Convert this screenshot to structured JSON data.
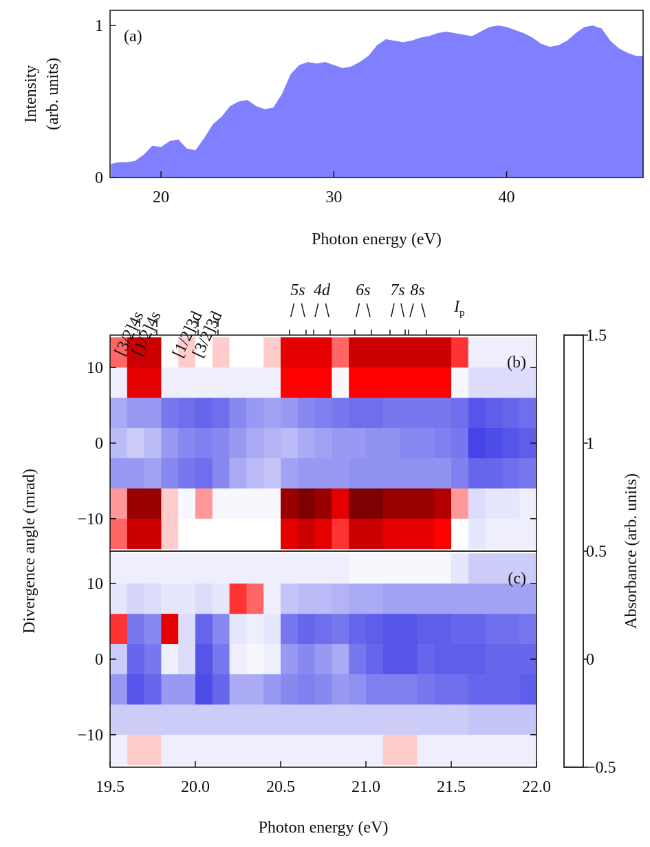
{
  "chart_data": [
    {
      "type": "area",
      "label": "(a)",
      "xlabel": "Photon energy (eV)",
      "ylabel": [
        "Intensity",
        "(arb. units)"
      ],
      "color": "#8080ff",
      "x": [
        17.1,
        17.5,
        18,
        18.5,
        19,
        19.5,
        20,
        20.5,
        21,
        21.5,
        22,
        22.5,
        23,
        23.5,
        24,
        24.5,
        25,
        25.5,
        26,
        26.5,
        27,
        27.5,
        28,
        28.5,
        29,
        29.5,
        30,
        30.5,
        31,
        31.5,
        32,
        32.5,
        33,
        33.5,
        34,
        34.5,
        35,
        35.5,
        36,
        36.5,
        37,
        37.5,
        38,
        38.5,
        39,
        39.5,
        40,
        40.5,
        41,
        41.5,
        42,
        42.5,
        43,
        43.5,
        44,
        44.5,
        45,
        45.5,
        46,
        46.5,
        47,
        47.5,
        47.9
      ],
      "values": [
        0.09,
        0.1,
        0.1,
        0.11,
        0.15,
        0.21,
        0.2,
        0.24,
        0.25,
        0.19,
        0.18,
        0.26,
        0.35,
        0.4,
        0.47,
        0.5,
        0.51,
        0.47,
        0.45,
        0.46,
        0.55,
        0.68,
        0.74,
        0.76,
        0.75,
        0.76,
        0.74,
        0.72,
        0.73,
        0.76,
        0.8,
        0.87,
        0.91,
        0.9,
        0.89,
        0.9,
        0.92,
        0.93,
        0.95,
        0.96,
        0.95,
        0.94,
        0.93,
        0.96,
        0.99,
        1.0,
        0.99,
        0.97,
        0.95,
        0.92,
        0.88,
        0.86,
        0.87,
        0.9,
        0.95,
        0.99,
        1.0,
        0.98,
        0.9,
        0.85,
        0.82,
        0.8,
        0.8
      ],
      "xlim": [
        17.05,
        47.9
      ],
      "ylim": [
        0,
        1.1
      ],
      "xticks": [
        20,
        30,
        40
      ],
      "yticks": [
        0,
        1
      ]
    },
    {
      "type": "heatmap",
      "label": "(b)",
      "ylabel": "Divergence angle (mrad)",
      "x": [
        19.55,
        19.65,
        19.75,
        19.85,
        19.95,
        20.05,
        20.15,
        20.25,
        20.35,
        20.45,
        20.55,
        20.65,
        20.75,
        20.85,
        20.95,
        21.05,
        21.15,
        21.25,
        21.35,
        21.45,
        21.55,
        21.65,
        21.75,
        21.85,
        21.95
      ],
      "y": [
        12,
        8,
        4,
        0,
        -4,
        -8,
        -12
      ],
      "z": [
        [
          -0.15,
          -0.35,
          -0.35,
          0,
          -0.05,
          0,
          -0.05,
          0,
          0,
          -0.05,
          -0.3,
          -0.3,
          -0.3,
          -0.15,
          -0.35,
          -0.35,
          -0.35,
          -0.35,
          -0.35,
          -0.35,
          -0.2,
          0.1,
          0.1,
          0.1,
          0.1
        ],
        [
          0.1,
          -0.3,
          -0.3,
          0.1,
          0.1,
          0.1,
          0.1,
          0.1,
          0.1,
          0.1,
          -0.25,
          -0.25,
          -0.25,
          0.05,
          -0.25,
          -0.25,
          -0.25,
          -0.25,
          -0.25,
          -0.25,
          0.05,
          0.2,
          0.2,
          0.2,
          0.2
        ],
        [
          0.5,
          0.6,
          0.6,
          0.8,
          0.85,
          0.9,
          0.85,
          0.7,
          0.6,
          0.55,
          0.6,
          0.7,
          0.75,
          0.8,
          0.85,
          0.85,
          0.8,
          0.8,
          0.8,
          0.8,
          0.85,
          1.0,
          0.95,
          0.9,
          0.85
        ],
        [
          0.4,
          0.3,
          0.4,
          0.6,
          0.7,
          0.75,
          0.7,
          0.6,
          0.5,
          0.45,
          0.4,
          0.5,
          0.55,
          0.6,
          0.6,
          0.65,
          0.65,
          0.7,
          0.7,
          0.75,
          0.8,
          1.1,
          1.05,
          1.0,
          0.95
        ],
        [
          0.6,
          0.6,
          0.55,
          0.7,
          0.8,
          0.85,
          0.7,
          0.5,
          0.4,
          0.35,
          0.55,
          0.6,
          0.6,
          0.6,
          0.65,
          0.65,
          0.65,
          0.65,
          0.65,
          0.65,
          0.75,
          0.9,
          0.9,
          0.85,
          0.8
        ],
        [
          -0.1,
          -0.45,
          -0.45,
          -0.05,
          0.05,
          -0.1,
          0.05,
          0.05,
          0.05,
          0.05,
          -0.45,
          -0.5,
          -0.45,
          -0.3,
          -0.5,
          -0.5,
          -0.45,
          -0.45,
          -0.45,
          -0.4,
          -0.1,
          0.2,
          0.15,
          0.15,
          0.1
        ],
        [
          -0.15,
          -0.35,
          -0.35,
          -0.05,
          0,
          0,
          0,
          0,
          0,
          0,
          -0.3,
          -0.35,
          -0.3,
          -0.2,
          -0.35,
          -0.35,
          -0.3,
          -0.3,
          -0.3,
          -0.25,
          0,
          0.15,
          0.1,
          0.1,
          0.1
        ]
      ],
      "xlim": [
        19.5,
        22.0
      ],
      "ylim": [
        -14.3,
        14.3
      ],
      "yticks": [
        {
          "value": -10,
          "label": "−10"
        },
        0,
        10
      ],
      "annotations": [
        {
          "label": "[3/2]4s",
          "energies": [
            19.673
          ]
        },
        {
          "label": "[1/2]4s",
          "energies": [
            19.774
          ]
        },
        {
          "label": "[1/2]3d",
          "energies": [
            20.016
          ]
        },
        {
          "label": "[3/2]3d",
          "energies": [
            20.133
          ]
        },
        {
          "label": "5s",
          "energies": [
            20.552,
            20.649
          ]
        },
        {
          "label": "4d",
          "energies": [
            20.694,
            20.79
          ]
        },
        {
          "label": "6s",
          "energies": [
            20.935,
            21.032
          ]
        },
        {
          "label": "7s",
          "energies": [
            21.141,
            21.23
          ]
        },
        {
          "label": "8s",
          "energies": [
            21.25,
            21.355
          ]
        },
        {
          "label": "I",
          "subscript": "p",
          "energies": [
            21.548
          ]
        }
      ],
      "colorbar": {
        "label": "Absorbance (arb. units)",
        "lim": [
          -0.5,
          1.5
        ],
        "ticks": [
          {
            "value": -0.5,
            "label": "−0.5"
          },
          0,
          0.5,
          1,
          1.5
        ],
        "colorscale": [
          [
            -0.5,
            "#7f0000"
          ],
          [
            -0.25,
            "#ff0000"
          ],
          [
            0,
            "#ffffff"
          ],
          [
            1.5,
            "#0000e0"
          ]
        ]
      }
    },
    {
      "type": "heatmap",
      "label": "(c)",
      "xlabel": "Photon energy (eV)",
      "x": [
        19.55,
        19.65,
        19.75,
        19.85,
        19.95,
        20.05,
        20.15,
        20.25,
        20.35,
        20.45,
        20.55,
        20.65,
        20.75,
        20.85,
        20.95,
        21.05,
        21.15,
        21.25,
        21.35,
        21.45,
        21.55,
        21.65,
        21.75,
        21.85,
        21.95
      ],
      "y": [
        12,
        8,
        4,
        0,
        -4,
        -8,
        -12
      ],
      "z": [
        [
          0.1,
          0.1,
          0.1,
          0.1,
          0.1,
          0.1,
          0.1,
          0.1,
          0.1,
          0.1,
          0.1,
          0.1,
          0.1,
          0.1,
          0.05,
          0.05,
          0.05,
          0.05,
          0.05,
          0.05,
          0.15,
          0.3,
          0.3,
          0.3,
          0.3
        ],
        [
          0.15,
          0.25,
          0.2,
          0.15,
          0.15,
          0.2,
          0.15,
          -0.2,
          -0.15,
          0.1,
          0.35,
          0.4,
          0.4,
          0.45,
          0.5,
          0.5,
          0.55,
          0.55,
          0.55,
          0.55,
          0.55,
          0.55,
          0.55,
          0.55,
          0.55
        ],
        [
          -0.2,
          0.8,
          0.7,
          -0.3,
          0.2,
          0.9,
          0.7,
          0.15,
          0.1,
          0.15,
          0.8,
          0.9,
          0.85,
          0.8,
          0.9,
          0.95,
          1.0,
          1.0,
          0.95,
          0.95,
          0.9,
          0.9,
          0.85,
          0.85,
          0.8
        ],
        [
          0.3,
          0.9,
          0.8,
          0.1,
          0.2,
          1.0,
          0.8,
          0.1,
          0.05,
          0.1,
          0.6,
          0.7,
          0.6,
          0.5,
          0.8,
          0.9,
          1.0,
          1.0,
          0.9,
          0.95,
          0.95,
          0.95,
          0.9,
          0.9,
          0.9
        ],
        [
          0.6,
          1.0,
          0.9,
          0.6,
          0.6,
          1.05,
          0.9,
          0.5,
          0.5,
          0.6,
          0.7,
          0.75,
          0.7,
          0.6,
          0.65,
          0.75,
          0.75,
          0.75,
          0.8,
          0.85,
          0.85,
          0.9,
          0.9,
          0.9,
          0.95
        ],
        [
          0.3,
          0.3,
          0.3,
          0.3,
          0.3,
          0.3,
          0.3,
          0.3,
          0.3,
          0.3,
          0.3,
          0.3,
          0.3,
          0.3,
          0.3,
          0.3,
          0.3,
          0.3,
          0.3,
          0.3,
          0.3,
          0.35,
          0.35,
          0.35,
          0.35
        ],
        [
          0.1,
          -0.05,
          -0.05,
          0.1,
          0.1,
          0.1,
          0.1,
          0.1,
          0.1,
          0.1,
          0.1,
          0.1,
          0.1,
          0.1,
          0.1,
          0.1,
          -0.05,
          -0.05,
          0.1,
          0.1,
          0.1,
          0.1,
          0.1,
          0.1,
          0.1
        ]
      ],
      "xlim": [
        19.5,
        22.0
      ],
      "ylim": [
        -14.3,
        14.3
      ],
      "xticks": [
        19.5,
        {
          "value": 20,
          "label": "20.0"
        },
        20.5,
        {
          "value": 21,
          "label": "21.0"
        },
        21.5,
        {
          "value": 22,
          "label": "22.0"
        }
      ],
      "yticks": [
        {
          "value": -10,
          "label": "−10"
        },
        0,
        10
      ]
    }
  ]
}
